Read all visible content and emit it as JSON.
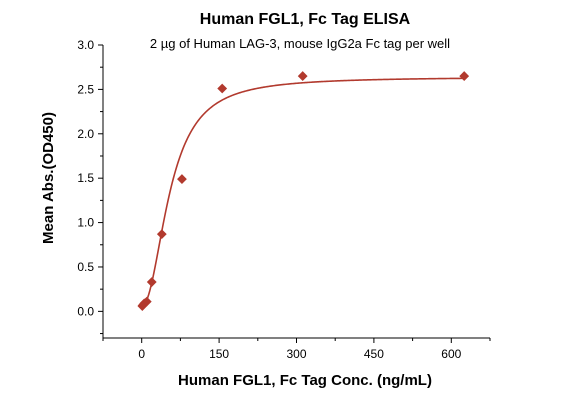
{
  "chart_data": {
    "type": "scatter",
    "title": "Human FGL1, Fc Tag ELISA",
    "subtitle": "2 µg of Human LAG-3, mouse IgG2a Fc tag per well",
    "xlabel": "Human FGL1, Fc Tag Conc. (ng/mL)",
    "ylabel": "Mean Abs.(OD450)",
    "xlim": [
      -75,
      675
    ],
    "ylim": [
      -0.3,
      3.0
    ],
    "x_ticks": [
      0,
      150,
      300,
      450,
      600
    ],
    "y_ticks": [
      0.0,
      0.5,
      1.0,
      1.5,
      2.0,
      2.5,
      3.0
    ],
    "x_tick_labels": [
      "0",
      "150",
      "300",
      "450",
      "600"
    ],
    "y_tick_labels": [
      "0.0",
      "0.5",
      "1.0",
      "1.5",
      "2.0",
      "2.5",
      "3.0"
    ],
    "grid": false,
    "color": "#b23a2e",
    "series": [
      {
        "marker": "diamond",
        "x": [
          1.2,
          2.4,
          4.9,
          9.8,
          19.5,
          39,
          78,
          156,
          312,
          625
        ],
        "y": [
          0.06,
          0.07,
          0.09,
          0.11,
          0.33,
          0.87,
          1.49,
          2.51,
          2.65,
          2.65
        ]
      }
    ],
    "fit_curve": {
      "type": "4PL",
      "bottom": 0.06,
      "top": 2.64,
      "ec50": 55,
      "hill": 2.1
    }
  }
}
